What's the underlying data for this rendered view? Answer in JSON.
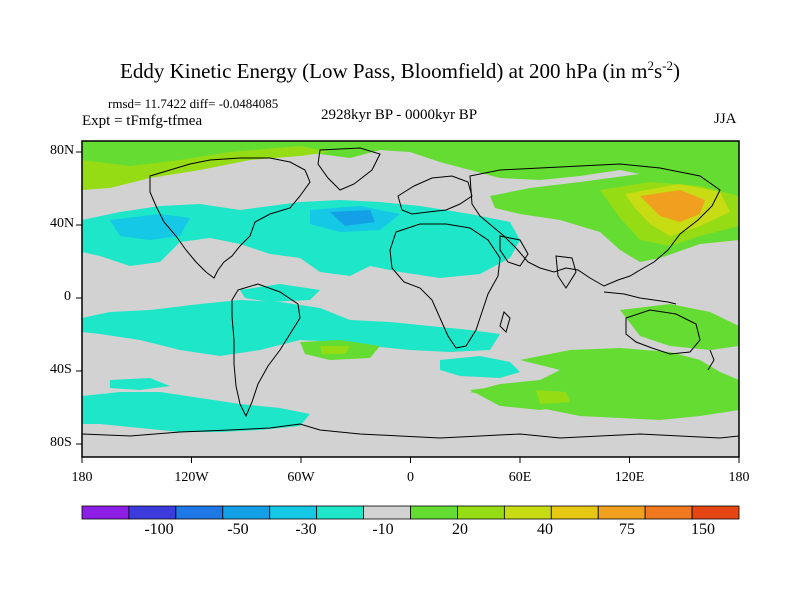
{
  "title": {
    "main": "Eddy Kinetic Energy (Low Pass, Bloomfield) at 200 hPa (in m",
    "sup1": "2",
    "mid": "s",
    "sup2": "-2",
    "end": ")"
  },
  "stats": "rmsd= 11.7422 diff= -0.0484085",
  "experiment": "Expt = tFmfg-tfmea",
  "period": "2928kyr BP - 0000kyr BP",
  "season": "JJA",
  "lat_labels": [
    "80N",
    "40N",
    "0",
    "40S",
    "80S"
  ],
  "lon_labels": [
    "180",
    "120W",
    "60W",
    "0",
    "60E",
    "120E",
    "180"
  ],
  "colorbar": {
    "labels": [
      "-100",
      "-50",
      "-30",
      "-10",
      "20",
      "40",
      "75",
      "150"
    ],
    "colors": [
      "#8c1ee6",
      "#3c3cdc",
      "#1e78e6",
      "#14a0e6",
      "#14c8e6",
      "#1ee6c8",
      "#d2d2d2",
      "#64dc32",
      "#96dc14",
      "#c8dc14",
      "#e6c814",
      "#f0a01e",
      "#f0781e",
      "#e64614"
    ]
  },
  "map_colors": {
    "background": "#d2d2d2",
    "neg_light": "#1ee6c8",
    "neg_mid": "#14c8e6",
    "neg_strong": "#14a0e6",
    "pos_light": "#64dc32",
    "pos_mid": "#96dc14",
    "pos_strong": "#c8dc14",
    "pos_orange": "#f0a01e"
  }
}
